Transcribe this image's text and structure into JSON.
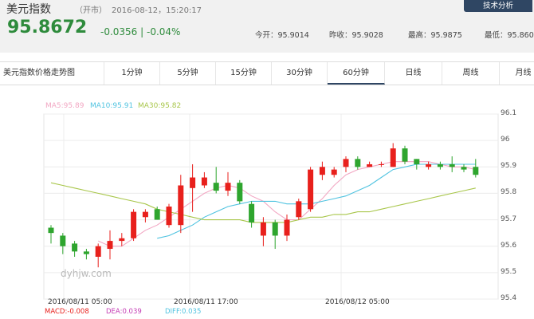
{
  "header": {
    "title": "美元指数",
    "status": "（开市）",
    "datetime": "2016-08-12，15:20:17",
    "analysis_button": "技术分析",
    "price": "95.8672",
    "change": "-0.0356 | -0.04%",
    "stats": {
      "open": "今开：95.9014",
      "prev_close": "昨收：95.9028",
      "high": "最高：95.9875",
      "low": "最低：95.860"
    }
  },
  "tabs": [
    {
      "label": "美元指数价格走势图"
    },
    {
      "label": "1分钟"
    },
    {
      "label": "5分钟"
    },
    {
      "label": "15分钟"
    },
    {
      "label": "30分钟"
    },
    {
      "label": "60分钟"
    },
    {
      "label": "日线"
    },
    {
      "label": "周线"
    },
    {
      "label": "月线"
    }
  ],
  "active_tab": "60分钟",
  "legend": {
    "ma5": "MA5:95.89",
    "ma10": "MA10:95.91",
    "ma30": "MA30:95.82"
  },
  "watermark": "dyhjw.com",
  "macd_legend": {
    "macd": "MACD:-0.008",
    "dea": "DEA:0.039",
    "diff": "DIFF:0.035"
  },
  "colors": {
    "up": "#e8201c",
    "down": "#2ea52e",
    "ma5": "#f2a7c3",
    "ma10": "#4fc3e0",
    "ma30": "#a8c64a",
    "header_bg": "#f1f1f1",
    "button_bg": "#2f4663"
  },
  "chart_data": {
    "type": "candlestick",
    "y_ticks": [
      "96.1",
      "96",
      "95.9",
      "95.8",
      "95.7",
      "95.6",
      "95.5",
      "95.4"
    ],
    "ylim": [
      95.4,
      96.1
    ],
    "x_ticks": [
      "2016/08/11 05:00",
      "2016/08/11 17:00",
      "2016/08/12 05:00"
    ],
    "candles": [
      {
        "o": 95.67,
        "c": 95.65,
        "h": 95.68,
        "l": 95.61
      },
      {
        "o": 95.64,
        "c": 95.6,
        "h": 95.65,
        "l": 95.57
      },
      {
        "o": 95.61,
        "c": 95.58,
        "h": 95.62,
        "l": 95.56
      },
      {
        "o": 95.58,
        "c": 95.57,
        "h": 95.59,
        "l": 95.55
      },
      {
        "o": 95.56,
        "c": 95.6,
        "h": 95.61,
        "l": 95.52
      },
      {
        "o": 95.59,
        "c": 95.62,
        "h": 95.66,
        "l": 95.55
      },
      {
        "o": 95.62,
        "c": 95.63,
        "h": 95.65,
        "l": 95.6
      },
      {
        "o": 95.63,
        "c": 95.73,
        "h": 95.74,
        "l": 95.62
      },
      {
        "o": 95.71,
        "c": 95.73,
        "h": 95.74,
        "l": 95.69
      },
      {
        "o": 95.74,
        "c": 95.7,
        "h": 95.75,
        "l": 95.7
      },
      {
        "o": 95.68,
        "c": 95.75,
        "h": 95.76,
        "l": 95.67
      },
      {
        "o": 95.68,
        "c": 95.83,
        "h": 95.87,
        "l": 95.65
      },
      {
        "o": 95.82,
        "c": 95.86,
        "h": 95.91,
        "l": 95.73
      },
      {
        "o": 95.83,
        "c": 95.86,
        "h": 95.88,
        "l": 95.82
      },
      {
        "o": 95.84,
        "c": 95.81,
        "h": 95.9,
        "l": 95.8
      },
      {
        "o": 95.81,
        "c": 95.84,
        "h": 95.88,
        "l": 95.79
      },
      {
        "o": 95.84,
        "c": 95.77,
        "h": 95.85,
        "l": 95.76
      },
      {
        "o": 95.76,
        "c": 95.69,
        "h": 95.77,
        "l": 95.67
      },
      {
        "o": 95.64,
        "c": 95.69,
        "h": 95.71,
        "l": 95.6
      },
      {
        "o": 95.69,
        "c": 95.64,
        "h": 95.7,
        "l": 95.59
      },
      {
        "o": 95.64,
        "c": 95.7,
        "h": 95.72,
        "l": 95.62
      },
      {
        "o": 95.71,
        "c": 95.77,
        "h": 95.78,
        "l": 95.7
      },
      {
        "o": 95.74,
        "c": 95.89,
        "h": 95.9,
        "l": 95.73
      },
      {
        "o": 95.87,
        "c": 95.9,
        "h": 95.92,
        "l": 95.85
      },
      {
        "o": 95.87,
        "c": 95.89,
        "h": 95.9,
        "l": 95.86
      },
      {
        "o": 95.9,
        "c": 95.93,
        "h": 95.94,
        "l": 95.88
      },
      {
        "o": 95.93,
        "c": 95.9,
        "h": 95.94,
        "l": 95.89
      },
      {
        "o": 95.9,
        "c": 95.91,
        "h": 95.92,
        "l": 95.9
      },
      {
        "o": 95.91,
        "c": 95.91,
        "h": 95.92,
        "l": 95.9
      },
      {
        "o": 95.9,
        "c": 95.97,
        "h": 95.99,
        "l": 95.9
      },
      {
        "o": 95.97,
        "c": 95.92,
        "h": 95.98,
        "l": 95.91
      },
      {
        "o": 95.93,
        "c": 95.91,
        "h": 95.93,
        "l": 95.89
      },
      {
        "o": 95.9,
        "c": 95.91,
        "h": 95.92,
        "l": 95.89
      },
      {
        "o": 95.91,
        "c": 95.9,
        "h": 95.92,
        "l": 95.89
      },
      {
        "o": 95.91,
        "c": 95.9,
        "h": 95.94,
        "l": 95.88
      },
      {
        "o": 95.9,
        "c": 95.89,
        "h": 95.91,
        "l": 95.88
      },
      {
        "o": 95.9,
        "c": 95.87,
        "h": 95.93,
        "l": 95.86
      }
    ],
    "series": [
      {
        "name": "MA5",
        "values": [
          null,
          null,
          null,
          null,
          95.62,
          95.6,
          95.6,
          95.63,
          95.66,
          95.68,
          95.71,
          95.74,
          95.77,
          95.8,
          95.82,
          95.83,
          95.82,
          95.79,
          95.77,
          95.73,
          95.7,
          95.7,
          95.74,
          95.78,
          95.83,
          95.87,
          95.89,
          95.9,
          95.91,
          95.92,
          95.92,
          95.92,
          95.92,
          95.91,
          95.9,
          95.9,
          95.89
        ]
      },
      {
        "name": "MA10",
        "values": [
          null,
          null,
          null,
          null,
          null,
          null,
          null,
          null,
          null,
          95.63,
          95.64,
          95.66,
          95.68,
          95.71,
          95.73,
          95.75,
          95.76,
          95.77,
          95.77,
          95.77,
          95.76,
          95.76,
          95.76,
          95.77,
          95.78,
          95.79,
          95.81,
          95.83,
          95.86,
          95.89,
          95.9,
          95.91,
          95.91,
          95.91,
          95.91,
          95.91,
          95.91
        ]
      },
      {
        "name": "MA30",
        "values": [
          95.84,
          95.83,
          95.82,
          95.81,
          95.8,
          95.79,
          95.78,
          95.77,
          95.76,
          95.74,
          95.73,
          95.72,
          95.71,
          95.7,
          95.7,
          95.7,
          95.7,
          95.69,
          95.69,
          95.69,
          95.69,
          95.7,
          95.71,
          95.71,
          95.72,
          95.72,
          95.73,
          95.73,
          95.74,
          95.75,
          95.76,
          95.77,
          95.78,
          95.79,
          95.8,
          95.81,
          95.82
        ]
      }
    ],
    "grid": true
  }
}
